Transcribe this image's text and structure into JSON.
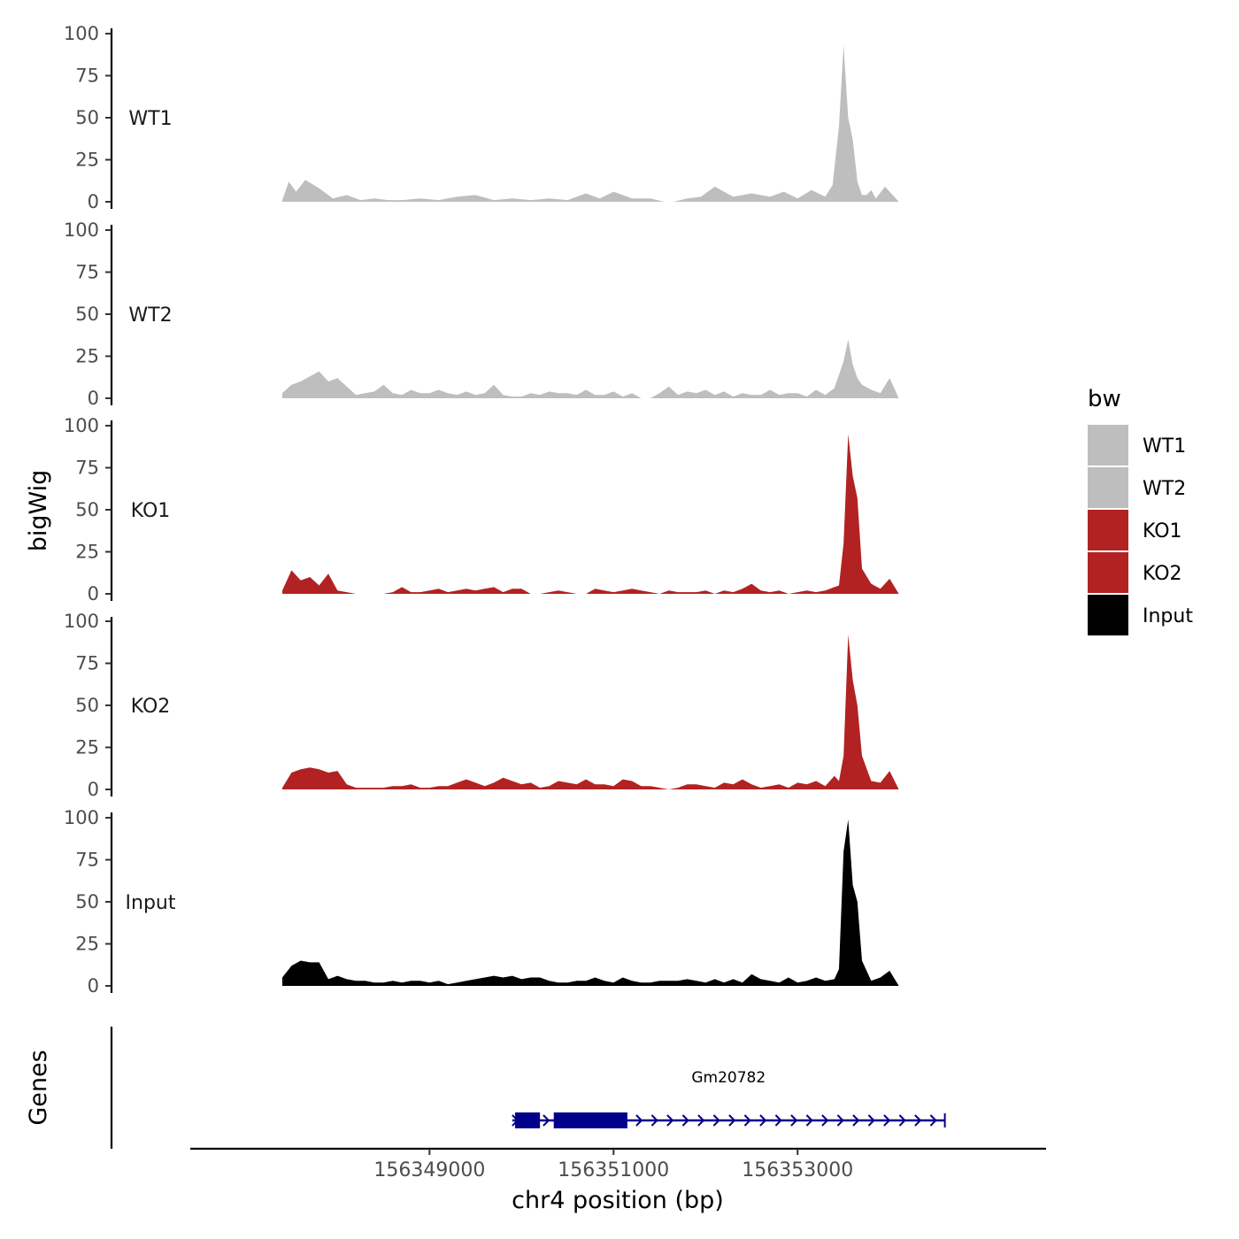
{
  "chart_data": {
    "type": "area",
    "ylabel": "bigWig",
    "xlabel": "chr4 position (bp)",
    "ylim": [
      0,
      100
    ],
    "y_ticks": [
      0,
      25,
      50,
      75,
      100
    ],
    "y_tick_labels": [
      "0",
      "25",
      "50",
      "75",
      "100"
    ],
    "x_range": [
      156346400,
      156355700
    ],
    "x_ticks": [
      156349000,
      156351000,
      156353000
    ],
    "x_tick_labels": [
      "156349000",
      "156351000",
      "156353000"
    ],
    "legend": {
      "title": "bw",
      "placement": "right"
    },
    "series": [
      {
        "name": "WT1",
        "color": "#bebebe",
        "x": [
          156347400,
          156347470,
          156347550,
          156347650,
          156347800,
          156347950,
          156348100,
          156348250,
          156348400,
          156348550,
          156348700,
          156348900,
          156349100,
          156349300,
          156349500,
          156349700,
          156349900,
          156350100,
          156350300,
          156350500,
          156350700,
          156350850,
          156351000,
          156351200,
          156351400,
          156351550,
          156351650,
          156351800,
          156351950,
          156352100,
          156352300,
          156352500,
          156352700,
          156352850,
          156353000,
          156353150,
          156353300,
          156353380,
          156353450,
          156353500,
          156353550,
          156353600,
          156353650,
          156353700,
          156353750,
          156353800,
          156353850,
          156353950,
          156354050,
          156354100
        ],
        "y": [
          1,
          12,
          6,
          13,
          8,
          2,
          4,
          1,
          2,
          1,
          1,
          2,
          1,
          3,
          4,
          1,
          2,
          1,
          2,
          1,
          5,
          2,
          6,
          2,
          2,
          0,
          0,
          2,
          3,
          9,
          3,
          5,
          3,
          6,
          2,
          7,
          3,
          10,
          45,
          93,
          50,
          37,
          12,
          4,
          4,
          7,
          2,
          9,
          3,
          0
        ]
      },
      {
        "name": "WT2",
        "color": "#bebebe",
        "x": [
          156347400,
          156347500,
          156347600,
          156347700,
          156347800,
          156347900,
          156348000,
          156348100,
          156348200,
          156348300,
          156348400,
          156348500,
          156348600,
          156348700,
          156348800,
          156348900,
          156349000,
          156349100,
          156349200,
          156349300,
          156349400,
          156349500,
          156349600,
          156349700,
          156349800,
          156349900,
          156350000,
          156350100,
          156350200,
          156350300,
          156350400,
          156350500,
          156350600,
          156350700,
          156350800,
          156350900,
          156351000,
          156351100,
          156351200,
          156351300,
          156351400,
          156351500,
          156351600,
          156351700,
          156351800,
          156351900,
          156352000,
          156352100,
          156352200,
          156352300,
          156352400,
          156352500,
          156352600,
          156352700,
          156352800,
          156352900,
          156353000,
          156353100,
          156353200,
          156353300,
          156353400,
          156353500,
          156353550,
          156353600,
          156353650,
          156353700,
          156353800,
          156353900,
          156354000,
          156354100
        ],
        "y": [
          3,
          8,
          10,
          13,
          16,
          10,
          12,
          7,
          2,
          3,
          4,
          8,
          3,
          2,
          5,
          3,
          3,
          5,
          3,
          2,
          4,
          2,
          3,
          8,
          2,
          1,
          1,
          3,
          2,
          4,
          3,
          3,
          2,
          5,
          2,
          2,
          4,
          1,
          3,
          0,
          0,
          3,
          7,
          2,
          4,
          3,
          5,
          2,
          4,
          1,
          3,
          2,
          2,
          5,
          2,
          3,
          3,
          1,
          5,
          2,
          6,
          22,
          35,
          20,
          12,
          8,
          5,
          3,
          12,
          0
        ]
      },
      {
        "name": "KO1",
        "color": "#b22222",
        "x": [
          156347400,
          156347500,
          156347600,
          156347700,
          156347800,
          156347900,
          156348000,
          156348100,
          156348200,
          156348300,
          156348400,
          156348500,
          156348600,
          156348700,
          156348800,
          156348900,
          156349000,
          156349100,
          156349200,
          156349300,
          156349400,
          156349500,
          156349600,
          156349700,
          156349800,
          156349900,
          156350000,
          156350100,
          156350200,
          156350300,
          156350400,
          156350500,
          156350600,
          156350700,
          156350800,
          156350900,
          156351000,
          156351100,
          156351200,
          156351300,
          156351400,
          156351500,
          156351600,
          156351700,
          156351800,
          156351900,
          156352000,
          156352100,
          156352200,
          156352300,
          156352400,
          156352500,
          156352600,
          156352700,
          156352800,
          156352900,
          156353000,
          156353100,
          156353200,
          156353300,
          156353400,
          156353450,
          156353500,
          156353550,
          156353600,
          156353650,
          156353700,
          156353800,
          156353900,
          156354000,
          156354100
        ],
        "y": [
          2,
          14,
          8,
          10,
          5,
          12,
          2,
          1,
          0,
          0,
          0,
          0,
          1,
          4,
          1,
          1,
          2,
          3,
          1,
          2,
          3,
          2,
          3,
          4,
          1,
          3,
          3,
          0,
          0,
          1,
          2,
          1,
          0,
          0,
          3,
          2,
          1,
          2,
          3,
          2,
          1,
          0,
          2,
          1,
          1,
          1,
          2,
          0,
          2,
          1,
          3,
          6,
          2,
          1,
          2,
          0,
          1,
          2,
          1,
          2,
          4,
          5,
          30,
          95,
          70,
          57,
          15,
          6,
          3,
          9,
          0
        ]
      },
      {
        "name": "KO2",
        "color": "#b22222",
        "x": [
          156347400,
          156347500,
          156347600,
          156347700,
          156347800,
          156347900,
          156348000,
          156348100,
          156348200,
          156348300,
          156348400,
          156348500,
          156348600,
          156348700,
          156348800,
          156348900,
          156349000,
          156349100,
          156349200,
          156349300,
          156349400,
          156349500,
          156349600,
          156349700,
          156349800,
          156349900,
          156350000,
          156350100,
          156350200,
          156350300,
          156350400,
          156350500,
          156350600,
          156350700,
          156350800,
          156350900,
          156351000,
          156351100,
          156351200,
          156351300,
          156351400,
          156351500,
          156351600,
          156351700,
          156351800,
          156351900,
          156352000,
          156352100,
          156352200,
          156352300,
          156352400,
          156352500,
          156352600,
          156352700,
          156352800,
          156352900,
          156353000,
          156353100,
          156353200,
          156353300,
          156353400,
          156353450,
          156353500,
          156353550,
          156353600,
          156353650,
          156353700,
          156353800,
          156353900,
          156354000,
          156354100
        ],
        "y": [
          1,
          10,
          12,
          13,
          12,
          10,
          11,
          3,
          1,
          1,
          1,
          1,
          2,
          2,
          3,
          1,
          1,
          2,
          2,
          4,
          6,
          4,
          2,
          4,
          7,
          5,
          3,
          4,
          1,
          2,
          5,
          4,
          3,
          6,
          3,
          3,
          2,
          6,
          5,
          2,
          2,
          1,
          0,
          1,
          3,
          3,
          2,
          1,
          4,
          3,
          6,
          3,
          1,
          2,
          3,
          1,
          4,
          3,
          5,
          2,
          8,
          5,
          20,
          92,
          65,
          50,
          20,
          5,
          4,
          11,
          0
        ]
      },
      {
        "name": "Input",
        "color": "#000000",
        "x": [
          156347400,
          156347500,
          156347600,
          156347700,
          156347800,
          156347900,
          156348000,
          156348100,
          156348200,
          156348300,
          156348400,
          156348500,
          156348600,
          156348700,
          156348800,
          156348900,
          156349000,
          156349100,
          156349200,
          156349300,
          156349400,
          156349500,
          156349600,
          156349700,
          156349800,
          156349900,
          156350000,
          156350100,
          156350200,
          156350300,
          156350400,
          156350500,
          156350600,
          156350700,
          156350800,
          156350900,
          156351000,
          156351100,
          156351200,
          156351300,
          156351400,
          156351500,
          156351600,
          156351700,
          156351800,
          156351900,
          156352000,
          156352100,
          156352200,
          156352300,
          156352400,
          156352500,
          156352600,
          156352700,
          156352800,
          156352900,
          156353000,
          156353100,
          156353200,
          156353300,
          156353400,
          156353450,
          156353500,
          156353550,
          156353600,
          156353650,
          156353700,
          156353800,
          156353900,
          156354000,
          156354100
        ],
        "y": [
          5,
          12,
          15,
          14,
          14,
          4,
          6,
          4,
          3,
          3,
          2,
          2,
          3,
          2,
          3,
          3,
          2,
          3,
          1,
          2,
          3,
          4,
          5,
          6,
          5,
          6,
          4,
          5,
          5,
          3,
          2,
          2,
          3,
          3,
          5,
          3,
          2,
          5,
          3,
          2,
          2,
          3,
          3,
          3,
          4,
          3,
          2,
          4,
          2,
          4,
          2,
          7,
          4,
          3,
          2,
          5,
          2,
          3,
          5,
          3,
          4,
          10,
          80,
          99,
          60,
          50,
          15,
          3,
          5,
          9,
          0
        ]
      }
    ],
    "gene_track": {
      "ylabel": "Genes",
      "genes": [
        {
          "name": "Gm20782",
          "strand": "+",
          "start": 156349900,
          "end": 156354600,
          "exons": [
            [
              156349930,
              156350200
            ],
            [
              156350350,
              156351150
            ]
          ],
          "color": "#00008b"
        }
      ]
    }
  }
}
